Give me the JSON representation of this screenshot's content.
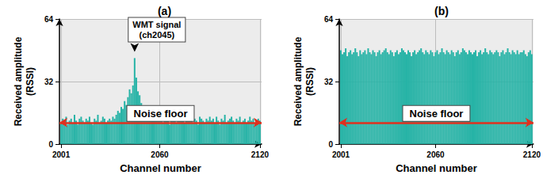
{
  "chart_data": [
    {
      "type": "bar",
      "title": "(a)",
      "xlabel": "Channel number",
      "ylabel": "Received amplitude\n(RSSI)",
      "color": "#26b3a6",
      "grid": true,
      "xlim": [
        2000,
        2121
      ],
      "xticks": [
        2001,
        2060,
        2120
      ],
      "ylim": [
        0,
        64
      ],
      "yticks": [
        0,
        32,
        64
      ],
      "x": [
        2001,
        2002,
        2003,
        2004,
        2005,
        2006,
        2007,
        2008,
        2009,
        2010,
        2011,
        2012,
        2013,
        2014,
        2015,
        2016,
        2017,
        2018,
        2019,
        2020,
        2021,
        2022,
        2023,
        2024,
        2025,
        2026,
        2027,
        2028,
        2029,
        2030,
        2031,
        2032,
        2033,
        2034,
        2035,
        2036,
        2037,
        2038,
        2039,
        2040,
        2041,
        2042,
        2043,
        2044,
        2045,
        2046,
        2047,
        2048,
        2049,
        2050,
        2051,
        2052,
        2053,
        2054,
        2055,
        2056,
        2057,
        2058,
        2059,
        2060,
        2061,
        2062,
        2063,
        2064,
        2065,
        2066,
        2067,
        2068,
        2069,
        2070,
        2071,
        2072,
        2073,
        2074,
        2075,
        2076,
        2077,
        2078,
        2079,
        2080,
        2081,
        2082,
        2083,
        2084,
        2085,
        2086,
        2087,
        2088,
        2089,
        2090,
        2091,
        2092,
        2093,
        2094,
        2095,
        2096,
        2097,
        2098,
        2099,
        2100,
        2101,
        2102,
        2103,
        2104,
        2105,
        2106,
        2107,
        2108,
        2109,
        2110,
        2111,
        2112,
        2113,
        2114,
        2115,
        2116,
        2117,
        2118,
        2119,
        2120
      ],
      "values": [
        11,
        13,
        12,
        14,
        10,
        12,
        13,
        11,
        15,
        12,
        10,
        13,
        14,
        12,
        11,
        13,
        12,
        14,
        11,
        10,
        13,
        12,
        15,
        11,
        12,
        14,
        13,
        11,
        12,
        13,
        12,
        14,
        13,
        15,
        17,
        16,
        19,
        18,
        22,
        20,
        24,
        28,
        26,
        30,
        44,
        34,
        27,
        25,
        21,
        19,
        18,
        16,
        15,
        17,
        14,
        13,
        15,
        12,
        14,
        13,
        12,
        11,
        14,
        13,
        12,
        10,
        13,
        12,
        14,
        11,
        12,
        13,
        15,
        12,
        11,
        13,
        12,
        14,
        12,
        11,
        13,
        12,
        10,
        14,
        13,
        12,
        11,
        13,
        12,
        14,
        12,
        13,
        11,
        14,
        12,
        10,
        13,
        12,
        15,
        11,
        12,
        13,
        14,
        12,
        11,
        13,
        12,
        14,
        11,
        12,
        13,
        11,
        12,
        14,
        12,
        13,
        11,
        12,
        13,
        12
      ],
      "annotations": [
        {
          "text": "WMT signal\n(ch2045)",
          "x": 2045
        },
        {
          "text": "Noise floor",
          "y": 11
        }
      ]
    },
    {
      "type": "bar",
      "title": "(b)",
      "xlabel": "Channel number",
      "ylabel": "Received amplitude\n(RSSI)",
      "color": "#26b3a6",
      "grid": true,
      "xlim": [
        2000,
        2121
      ],
      "xticks": [
        2001,
        2060,
        2120
      ],
      "ylim": [
        0,
        64
      ],
      "yticks": [
        0,
        32,
        64
      ],
      "x": [
        2001,
        2002,
        2003,
        2004,
        2005,
        2006,
        2007,
        2008,
        2009,
        2010,
        2011,
        2012,
        2013,
        2014,
        2015,
        2016,
        2017,
        2018,
        2019,
        2020,
        2021,
        2022,
        2023,
        2024,
        2025,
        2026,
        2027,
        2028,
        2029,
        2030,
        2031,
        2032,
        2033,
        2034,
        2035,
        2036,
        2037,
        2038,
        2039,
        2040,
        2041,
        2042,
        2043,
        2044,
        2045,
        2046,
        2047,
        2048,
        2049,
        2050,
        2051,
        2052,
        2053,
        2054,
        2055,
        2056,
        2057,
        2058,
        2059,
        2060,
        2061,
        2062,
        2063,
        2064,
        2065,
        2066,
        2067,
        2068,
        2069,
        2070,
        2071,
        2072,
        2073,
        2074,
        2075,
        2076,
        2077,
        2078,
        2079,
        2080,
        2081,
        2082,
        2083,
        2084,
        2085,
        2086,
        2087,
        2088,
        2089,
        2090,
        2091,
        2092,
        2093,
        2094,
        2095,
        2096,
        2097,
        2098,
        2099,
        2100,
        2101,
        2102,
        2103,
        2104,
        2105,
        2106,
        2107,
        2108,
        2109,
        2110,
        2111,
        2112,
        2113,
        2114,
        2115,
        2116,
        2117,
        2118,
        2119,
        2120
      ],
      "values": [
        48,
        46,
        47,
        49,
        45,
        47,
        48,
        46,
        47,
        49,
        47,
        45,
        48,
        46,
        47,
        48,
        46,
        49,
        47,
        46,
        48,
        47,
        45,
        47,
        48,
        46,
        47,
        48,
        49,
        47,
        46,
        48,
        47,
        45,
        47,
        48,
        46,
        47,
        49,
        48,
        47,
        46,
        48,
        47,
        45,
        47,
        48,
        46,
        47,
        48,
        49,
        47,
        46,
        48,
        47,
        46,
        48,
        47,
        45,
        47,
        48,
        46,
        47,
        49,
        47,
        46,
        48,
        47,
        46,
        48,
        47,
        45,
        47,
        48,
        46,
        47,
        49,
        48,
        47,
        46,
        48,
        47,
        46,
        47,
        48,
        45,
        47,
        48,
        46,
        47,
        49,
        47,
        46,
        48,
        47,
        46,
        47,
        48,
        47,
        45,
        47,
        48,
        46,
        47,
        49,
        47,
        46,
        48,
        47,
        46,
        48,
        46,
        47,
        47,
        48,
        46,
        45,
        47,
        48,
        46
      ],
      "annotations": [
        {
          "text": "Noise floor",
          "y": 11
        }
      ]
    }
  ]
}
